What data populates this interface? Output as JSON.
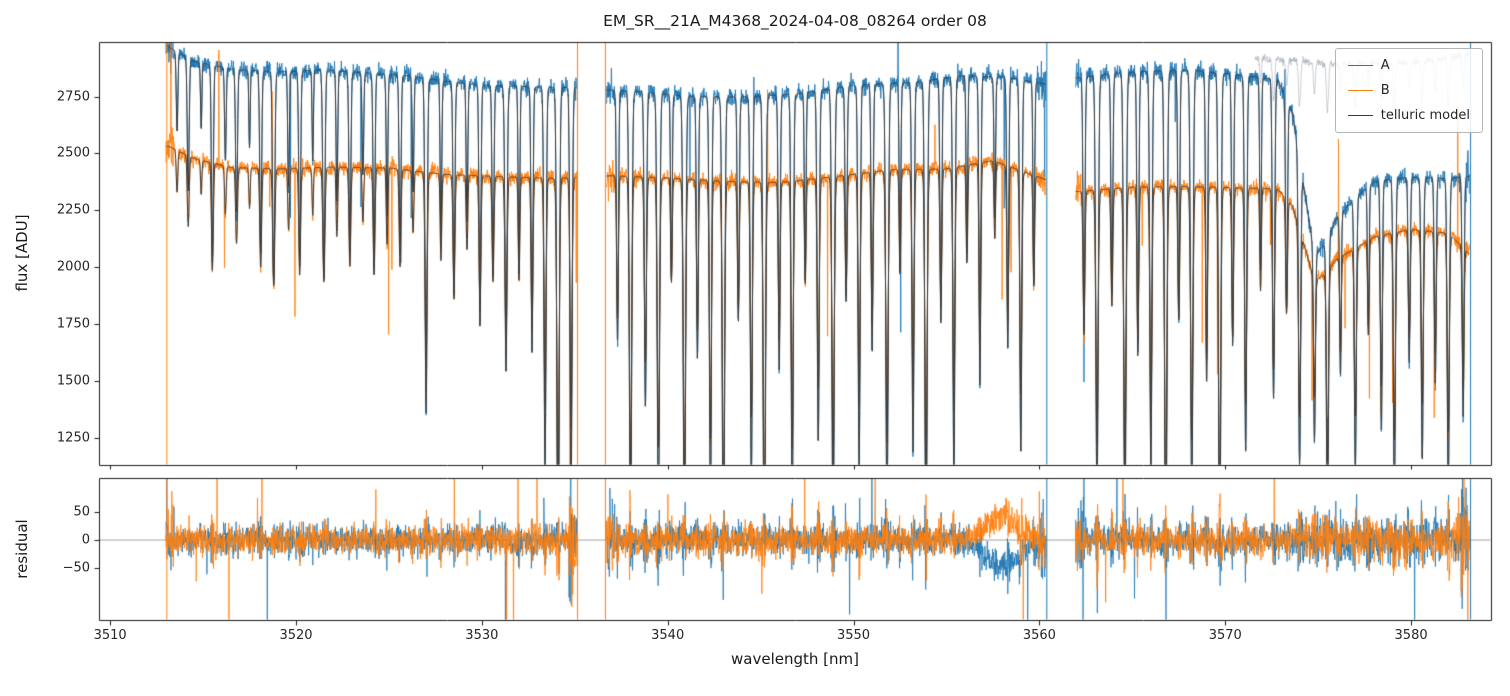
{
  "chart_data": {
    "type": "line",
    "title": "EM_SR__21A_M4368_2024-04-08_08264  order 08",
    "xlabel": "wavelength [nm]",
    "xlim": [
      3509.4,
      3584.3
    ],
    "xticks": [
      3510,
      3520,
      3530,
      3540,
      3550,
      3560,
      3570,
      3580
    ],
    "panels": [
      {
        "name": "flux",
        "ylabel": "flux [ADU]",
        "ylim": [
          1130,
          2990
        ],
        "yticks": [
          1250,
          1500,
          1750,
          2000,
          2250,
          2500,
          2750
        ],
        "legend": {
          "position": "upper right",
          "entries": [
            {
              "label": "A",
              "color": "#1f77b4"
            },
            {
              "label": "B",
              "color": "#ff7f0e"
            },
            {
              "label": "telluric model",
              "color": "#3a3a3a"
            }
          ]
        }
      },
      {
        "name": "residual",
        "ylabel": "residual",
        "ylim": [
          -143,
          111
        ],
        "yticks": [
          -50,
          0,
          50
        ],
        "zero_line": true
      }
    ],
    "wavelength_segments_nm": [
      [
        3513.0,
        3535.1
      ],
      [
        3536.7,
        3560.35
      ],
      [
        3561.95,
        3583.15
      ]
    ],
    "series": {
      "A": {
        "color": "#1f77b4",
        "noise_sigma_adu": 16,
        "continuum_adu": {
          "x": [
            3513.0,
            3514.5,
            3516.5,
            3519,
            3521.5,
            3524,
            3526,
            3528,
            3530,
            3532,
            3535,
            3537,
            3539,
            3541,
            3544,
            3547,
            3550,
            3553,
            3556,
            3558.5,
            3560.3,
            3562,
            3564,
            3566,
            3568,
            3570,
            3572,
            3574,
            3576,
            3578,
            3580,
            3582,
            3583.3
          ],
          "y": [
            2975,
            2905,
            2870,
            2858,
            2868,
            2852,
            2842,
            2818,
            2800,
            2795,
            2788,
            2778,
            2768,
            2752,
            2748,
            2762,
            2800,
            2812,
            2842,
            2832,
            2805,
            2832,
            2852,
            2862,
            2868,
            2852,
            2832,
            2822,
            2806,
            2812,
            2818,
            2832,
            2858
          ]
        }
      },
      "B": {
        "color": "#ff7f0e",
        "noise_sigma_adu": 14,
        "telluric_exponent": 0.6,
        "continuum_adu": {
          "x": [
            3513.2,
            3514.5,
            3516.5,
            3519,
            3522,
            3525,
            3528,
            3531,
            3534,
            3537,
            3540,
            3543,
            3546,
            3549,
            3552,
            3555,
            3557.5,
            3560,
            3562,
            3565,
            3568,
            3571,
            3574,
            3577,
            3580,
            3582,
            3583.3
          ],
          "y": [
            2530,
            2478,
            2438,
            2432,
            2440,
            2436,
            2408,
            2398,
            2390,
            2402,
            2392,
            2378,
            2372,
            2398,
            2428,
            2432,
            2468,
            2395,
            2332,
            2352,
            2355,
            2348,
            2342,
            2345,
            2388,
            2380,
            2270
          ]
        }
      },
      "telluric_model": {
        "color": "#3a3a3a"
      },
      "masked_segment": {
        "color": "rgba(160,168,178,0.55)",
        "range_nm": [
          3571.6,
          3583.3
        ],
        "scale": 1.03,
        "line_depth_factor": 0.12,
        "noise_sigma_adu": 8
      }
    },
    "telluric_lines": [
      [
        3513.6,
        0.12,
        0.06
      ],
      [
        3514.2,
        0.2,
        0.07
      ],
      [
        3514.9,
        0.1,
        0.05
      ],
      [
        3515.5,
        0.3,
        0.07
      ],
      [
        3516.2,
        0.14,
        0.06
      ],
      [
        3516.8,
        0.22,
        0.07
      ],
      [
        3517.5,
        0.12,
        0.05
      ],
      [
        3518.1,
        0.28,
        0.07
      ],
      [
        3518.8,
        0.33,
        0.08
      ],
      [
        3519.6,
        0.18,
        0.06
      ],
      [
        3520.2,
        0.3,
        0.07
      ],
      [
        3520.9,
        0.14,
        0.05
      ],
      [
        3521.5,
        0.32,
        0.08
      ],
      [
        3522.2,
        0.2,
        0.06
      ],
      [
        3522.9,
        0.28,
        0.07
      ],
      [
        3523.6,
        0.16,
        0.06
      ],
      [
        3524.2,
        0.3,
        0.07
      ],
      [
        3524.9,
        0.22,
        0.06
      ],
      [
        3525.6,
        0.28,
        0.07
      ],
      [
        3526.3,
        0.18,
        0.06
      ],
      [
        3527.0,
        0.52,
        0.08
      ],
      [
        3527.8,
        0.25,
        0.06
      ],
      [
        3528.5,
        0.34,
        0.07
      ],
      [
        3529.2,
        0.22,
        0.06
      ],
      [
        3529.9,
        0.38,
        0.07
      ],
      [
        3530.6,
        0.3,
        0.07
      ],
      [
        3531.3,
        0.45,
        0.08
      ],
      [
        3532.0,
        0.3,
        0.06
      ],
      [
        3532.7,
        0.42,
        0.07
      ],
      [
        3533.4,
        0.6,
        0.08
      ],
      [
        3534.1,
        0.8,
        0.09
      ],
      [
        3534.8,
        0.65,
        0.08
      ],
      [
        3537.3,
        0.4,
        0.07
      ],
      [
        3538.0,
        0.72,
        0.09
      ],
      [
        3538.8,
        0.5,
        0.08
      ],
      [
        3539.5,
        0.68,
        0.09
      ],
      [
        3540.2,
        0.3,
        0.06
      ],
      [
        3540.9,
        0.74,
        0.09
      ],
      [
        3541.6,
        0.42,
        0.07
      ],
      [
        3542.3,
        0.66,
        0.08
      ],
      [
        3543.0,
        0.78,
        0.09
      ],
      [
        3543.8,
        0.36,
        0.07
      ],
      [
        3544.5,
        0.62,
        0.08
      ],
      [
        3545.2,
        0.82,
        0.09
      ],
      [
        3546.0,
        0.44,
        0.07
      ],
      [
        3546.7,
        0.68,
        0.08
      ],
      [
        3547.4,
        0.3,
        0.06
      ],
      [
        3548.1,
        0.56,
        0.08
      ],
      [
        3548.9,
        0.72,
        0.09
      ],
      [
        3549.6,
        0.34,
        0.07
      ],
      [
        3550.3,
        0.6,
        0.08
      ],
      [
        3551.0,
        0.42,
        0.07
      ],
      [
        3551.8,
        0.68,
        0.09
      ],
      [
        3552.5,
        0.3,
        0.06
      ],
      [
        3553.2,
        0.58,
        0.08
      ],
      [
        3553.9,
        0.76,
        0.09
      ],
      [
        3554.7,
        0.38,
        0.07
      ],
      [
        3555.4,
        0.62,
        0.08
      ],
      [
        3556.1,
        0.28,
        0.06
      ],
      [
        3556.8,
        0.48,
        0.07
      ],
      [
        3557.6,
        0.22,
        0.06
      ],
      [
        3558.3,
        0.42,
        0.07
      ],
      [
        3559.0,
        0.58,
        0.08
      ],
      [
        3559.7,
        0.32,
        0.06
      ],
      [
        3562.4,
        0.4,
        0.07
      ],
      [
        3563.1,
        0.66,
        0.09
      ],
      [
        3563.9,
        0.34,
        0.07
      ],
      [
        3564.6,
        0.72,
        0.09
      ],
      [
        3565.3,
        0.44,
        0.07
      ],
      [
        3566.0,
        0.62,
        0.08
      ],
      [
        3566.8,
        0.8,
        0.09
      ],
      [
        3567.5,
        0.38,
        0.07
      ],
      [
        3568.2,
        0.66,
        0.09
      ],
      [
        3569.0,
        0.48,
        0.07
      ],
      [
        3569.7,
        0.78,
        0.09
      ],
      [
        3570.4,
        0.42,
        0.07
      ],
      [
        3571.1,
        0.58,
        0.08
      ],
      [
        3571.9,
        0.3,
        0.06
      ],
      [
        3572.6,
        0.5,
        0.08
      ],
      [
        3573.3,
        0.34,
        0.07
      ],
      [
        3574.0,
        0.55,
        0.08
      ],
      [
        3574.8,
        0.4,
        0.07
      ],
      [
        3575.5,
        0.6,
        0.08
      ],
      [
        3576.2,
        0.32,
        0.06
      ],
      [
        3577.0,
        0.52,
        0.08
      ],
      [
        3577.7,
        0.28,
        0.06
      ],
      [
        3578.4,
        0.46,
        0.07
      ],
      [
        3579.1,
        0.6,
        0.08
      ],
      [
        3579.9,
        0.34,
        0.07
      ],
      [
        3580.6,
        0.52,
        0.08
      ],
      [
        3581.3,
        0.38,
        0.07
      ],
      [
        3582.0,
        0.58,
        0.08
      ],
      [
        3582.8,
        0.44,
        0.07
      ]
    ],
    "broad_band_transmission": [
      [
        3572.8,
        1.0
      ],
      [
        3573.6,
        0.95
      ],
      [
        3574.2,
        0.84
      ],
      [
        3574.8,
        0.73
      ],
      [
        3575.3,
        0.745
      ],
      [
        3576.0,
        0.79
      ],
      [
        3577.0,
        0.82
      ],
      [
        3578.0,
        0.845
      ],
      [
        3580.0,
        0.85
      ],
      [
        3583.3,
        0.84
      ]
    ],
    "outlier_vlines": [
      {
        "x": 3513.05,
        "series": "B"
      },
      {
        "x": 3535.15,
        "series": "B"
      },
      {
        "x": 3536.65,
        "series": "B"
      },
      {
        "x": 3560.4,
        "series": "A"
      },
      {
        "x": 3583.2,
        "series": "A"
      }
    ],
    "residual": {
      "sigma": 13,
      "line_noise_gain": 3.5,
      "divergence": {
        "center_nm": 3558.0,
        "width_nm": 1.3,
        "a_offset": -45,
        "b_offset": 40
      }
    },
    "seed": 42
  }
}
